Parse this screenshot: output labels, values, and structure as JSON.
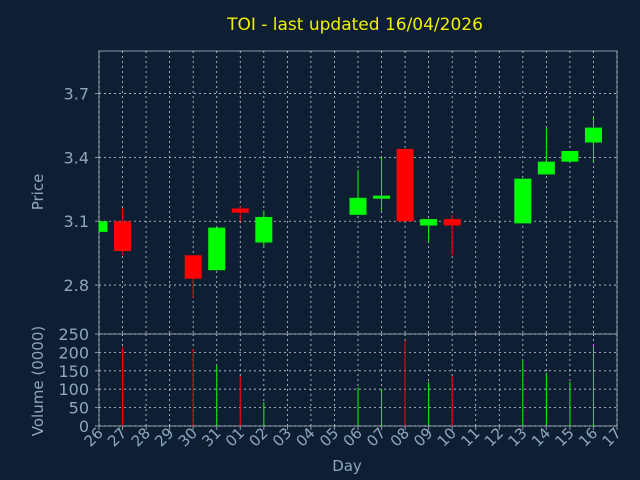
{
  "chart_data": {
    "type": "candlestick",
    "title": "TOI - last updated 16/04/2026",
    "xlabel": "Day",
    "colors": {
      "up": "#00ff00",
      "down": "#ff0000",
      "background": "#0f1f33",
      "title": "#f0f000",
      "axis_text": "#8ea6bf"
    },
    "categories": [
      "26",
      "27",
      "28",
      "29",
      "30",
      "31",
      "01",
      "02",
      "03",
      "04",
      "05",
      "06",
      "07",
      "08",
      "09",
      "10",
      "11",
      "12",
      "13",
      "14",
      "15",
      "16",
      "17"
    ],
    "price_panel": {
      "ylabel": "Price",
      "ylim": [
        2.57,
        3.9
      ],
      "yticks": [
        2.8,
        3.1,
        3.4,
        3.7
      ],
      "grid": true,
      "candles": [
        {
          "x": "26",
          "open": 3.05,
          "high": 3.1,
          "low": 3.05,
          "close": 3.1
        },
        {
          "x": "27",
          "open": 3.1,
          "high": 3.16,
          "low": 2.94,
          "close": 2.96
        },
        {
          "x": "30",
          "open": 2.94,
          "high": 2.94,
          "low": 2.74,
          "close": 2.83
        },
        {
          "x": "31",
          "open": 2.87,
          "high": 3.07,
          "low": 2.87,
          "close": 3.07
        },
        {
          "x": "01",
          "open": 3.16,
          "high": 3.17,
          "low": 3.1,
          "close": 3.14
        },
        {
          "x": "02",
          "open": 3.0,
          "high": 3.15,
          "low": 2.98,
          "close": 3.12
        },
        {
          "x": "06",
          "open": 3.13,
          "high": 3.34,
          "low": 3.13,
          "close": 3.21
        },
        {
          "x": "07",
          "open": 3.21,
          "high": 3.4,
          "low": 3.15,
          "close": 3.22
        },
        {
          "x": "08",
          "open": 3.44,
          "high": 3.44,
          "low": 3.1,
          "close": 3.1
        },
        {
          "x": "09",
          "open": 3.08,
          "high": 3.11,
          "low": 3.0,
          "close": 3.11
        },
        {
          "x": "10",
          "open": 3.11,
          "high": 3.13,
          "low": 2.94,
          "close": 3.08
        },
        {
          "x": "13",
          "open": 3.09,
          "high": 3.3,
          "low": 3.09,
          "close": 3.3
        },
        {
          "x": "14",
          "open": 3.32,
          "high": 3.54,
          "low": 3.32,
          "close": 3.38
        },
        {
          "x": "15",
          "open": 3.38,
          "high": 3.43,
          "low": 3.38,
          "close": 3.43
        },
        {
          "x": "16",
          "open": 3.47,
          "high": 3.59,
          "low": 3.38,
          "close": 3.54
        }
      ]
    },
    "volume_panel": {
      "ylabel": "Volume (0000)",
      "ylim": [
        0,
        250
      ],
      "yticks": [
        0,
        50,
        100,
        150,
        200,
        250
      ],
      "bars": [
        {
          "x": "27",
          "value": 215,
          "dir": "down"
        },
        {
          "x": "30",
          "value": 210,
          "dir": "down"
        },
        {
          "x": "31",
          "value": 165,
          "dir": "up"
        },
        {
          "x": "01",
          "value": 135,
          "dir": "down"
        },
        {
          "x": "02",
          "value": 65,
          "dir": "up"
        },
        {
          "x": "06",
          "value": 105,
          "dir": "up"
        },
        {
          "x": "07",
          "value": 100,
          "dir": "up"
        },
        {
          "x": "08",
          "value": 232,
          "dir": "down"
        },
        {
          "x": "09",
          "value": 120,
          "dir": "up"
        },
        {
          "x": "10",
          "value": 135,
          "dir": "down"
        },
        {
          "x": "13",
          "value": 178,
          "dir": "up"
        },
        {
          "x": "14",
          "value": 145,
          "dir": "up"
        },
        {
          "x": "15",
          "value": 120,
          "dir": "up"
        },
        {
          "x": "16",
          "value": 218,
          "dir": "up"
        }
      ]
    }
  }
}
